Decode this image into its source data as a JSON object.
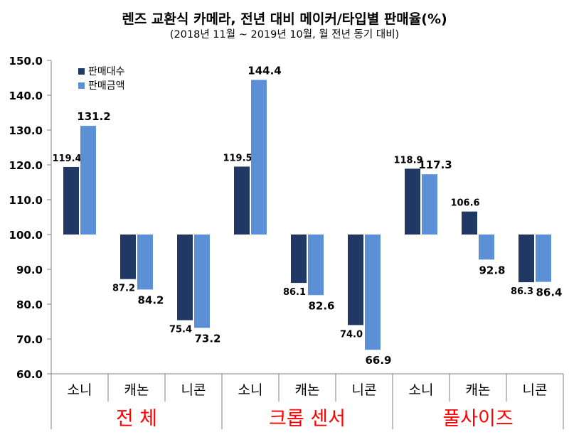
{
  "chart_data": {
    "type": "bar",
    "title": "렌즈 교환식 카메라, 전년 대비 메이커/타입별 판매율(%)",
    "subtitle": "(2018년 11월 ~ 2019년 10월, 월 전년 동기 대비)",
    "ylim": [
      60,
      150
    ],
    "yticks": [
      "60.0",
      "70.0",
      "80.0",
      "90.0",
      "100.0",
      "110.0",
      "120.0",
      "130.0",
      "140.0",
      "150.0"
    ],
    "baseline": 100,
    "grid": false,
    "legend_position": "top-left",
    "categories": [
      "소니",
      "캐논",
      "니콘",
      "소니",
      "캐논",
      "니콘",
      "소니",
      "캐논",
      "니콘"
    ],
    "groups": [
      {
        "label": "전 체",
        "span": 3
      },
      {
        "label": "크롭 센서",
        "span": 3
      },
      {
        "label": "풀사이즈",
        "span": 3
      }
    ],
    "series": [
      {
        "name": "판매대수",
        "color": "#1f3864",
        "values": [
          119.4,
          87.2,
          75.4,
          119.5,
          86.1,
          74.0,
          118.9,
          106.6,
          86.3
        ],
        "labels": [
          "119.4",
          "87.2",
          "75.4",
          "119.5",
          "86.1",
          "74.0",
          "118.9",
          "106.6",
          "86.3"
        ]
      },
      {
        "name": "판매금액",
        "color": "#5b8fd6",
        "values": [
          131.2,
          84.2,
          73.2,
          144.4,
          82.6,
          66.9,
          117.3,
          92.8,
          86.4
        ],
        "labels": [
          "131.2",
          "84.2",
          "73.2",
          "144.4",
          "82.6",
          "66.9",
          "117.3",
          "92.8",
          "86.4"
        ]
      }
    ],
    "group_label_color": "#ff0000"
  }
}
